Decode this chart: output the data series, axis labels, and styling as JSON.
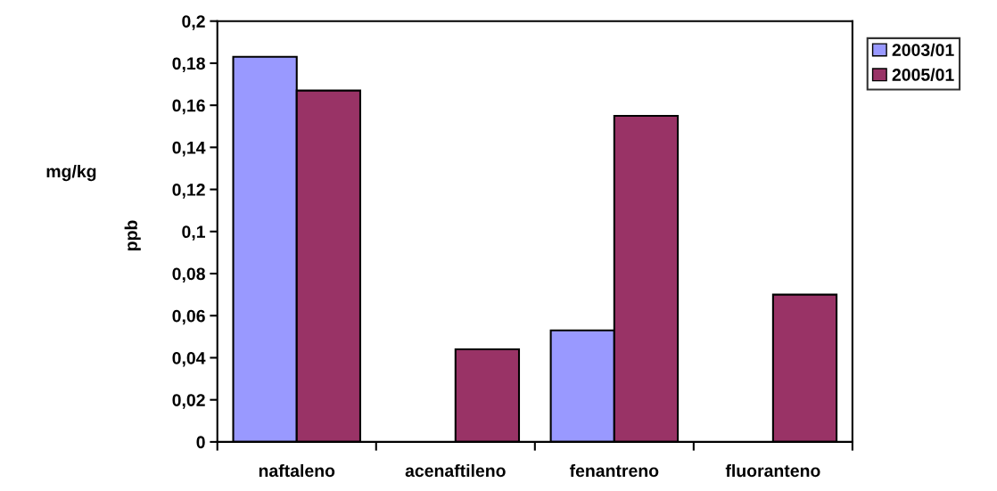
{
  "chart_data": {
    "type": "bar",
    "ylabel": "mg/kg",
    "annotations": [
      "ppb"
    ],
    "categories": [
      "naftaleno",
      "acenaftileno",
      "fenantreno",
      "fluoranteno"
    ],
    "series": [
      {
        "name": "2003/01",
        "color": "#9999ff",
        "values": [
          0.183,
          null,
          0.053,
          null
        ]
      },
      {
        "name": "2005/01",
        "color": "#993366",
        "values": [
          0.167,
          0.044,
          0.155,
          0.07
        ]
      }
    ],
    "ylim": [
      0,
      0.2
    ],
    "yticks": [
      {
        "value": 0,
        "label": "0"
      },
      {
        "value": 0.02,
        "label": "0,02"
      },
      {
        "value": 0.04,
        "label": "0,04"
      },
      {
        "value": 0.06,
        "label": "0,06"
      },
      {
        "value": 0.08,
        "label": "0,08"
      },
      {
        "value": 0.1,
        "label": "0,1"
      },
      {
        "value": 0.12,
        "label": "0,12"
      },
      {
        "value": 0.14,
        "label": "0,14"
      },
      {
        "value": 0.16,
        "label": "0,16"
      },
      {
        "value": 0.18,
        "label": "0,18"
      },
      {
        "value": 0.2,
        "label": "0,2"
      }
    ],
    "grid": false,
    "legend": "right"
  }
}
